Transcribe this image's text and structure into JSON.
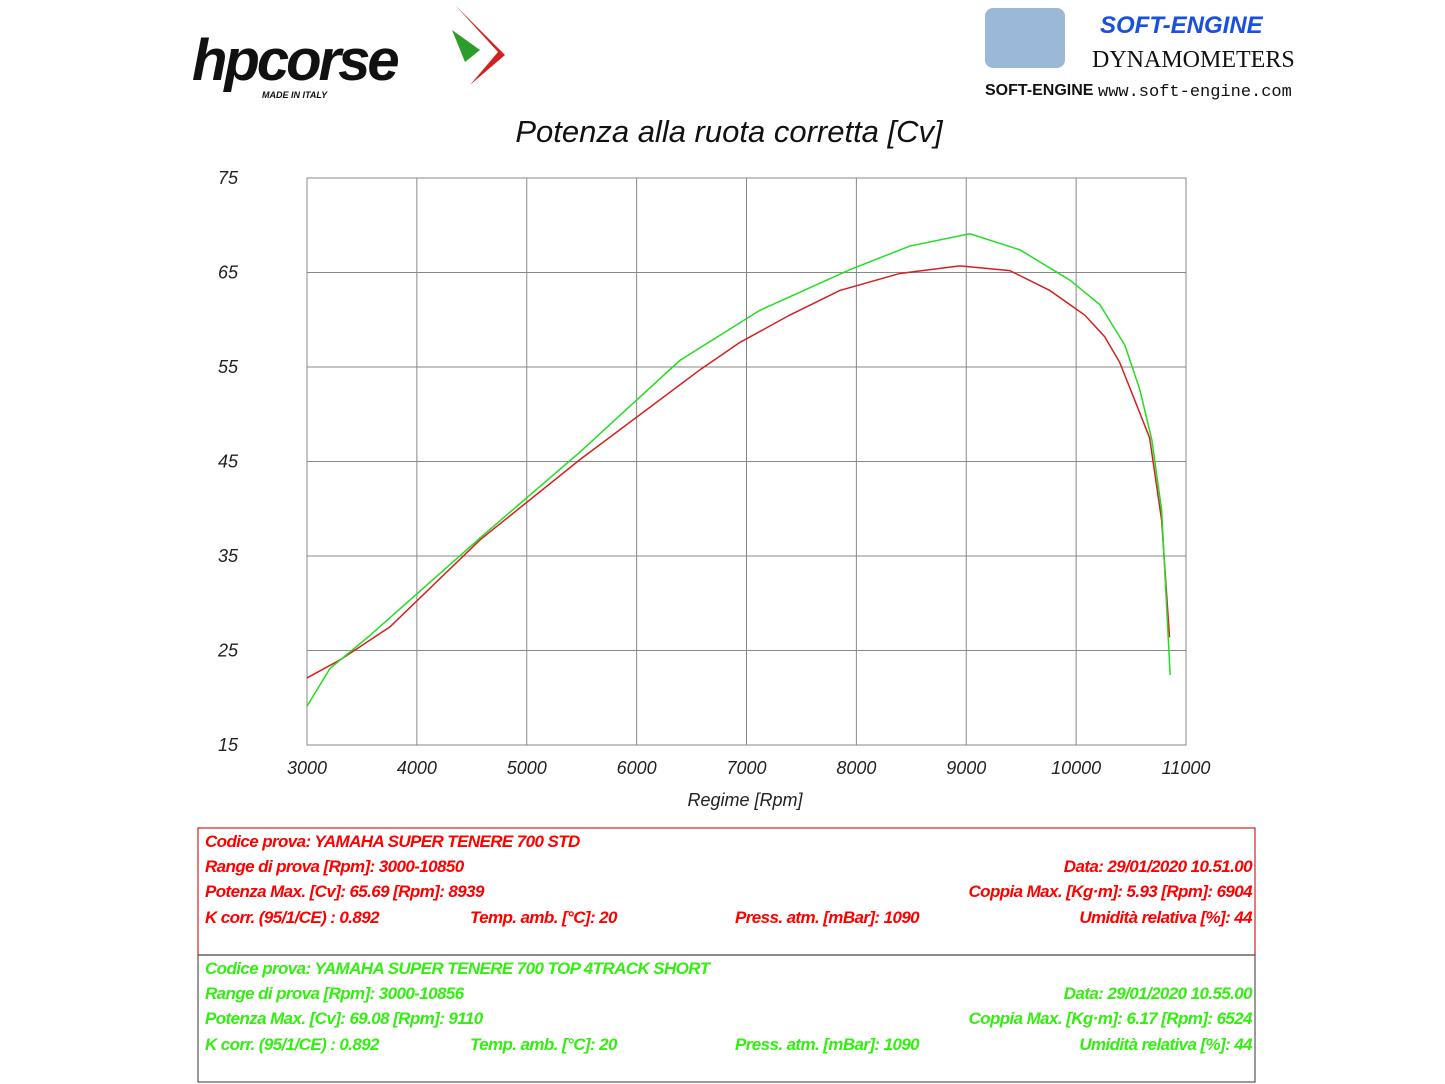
{
  "logos": {
    "brand": "hpcorse",
    "brand_tagline": "MADE IN ITALY",
    "dyno_name": "SOFT-ENGINE",
    "dyno_subtitle": "DYNAMOMETERS",
    "dyno_mark": "SOFT-ENGINE",
    "dyno_url": "www.soft-engine.com"
  },
  "chart_data": {
    "type": "line",
    "title": "Potenza alla ruota corretta [Cv]",
    "x_label": "Regime [Rpm]",
    "xlim": [
      3000,
      11000
    ],
    "xticks": [
      3000,
      4000,
      5000,
      6000,
      7000,
      8000,
      9000,
      10000,
      11000
    ],
    "ylim": [
      15,
      75
    ],
    "yticks": [
      15,
      25,
      35,
      45,
      55,
      65,
      75
    ],
    "grid": true,
    "series": [
      {
        "color": "#d42020",
        "x": [
          3000,
          3300,
          3755,
          4574,
          5484,
          6576,
          6940,
          7395,
          7850,
          8396,
          8941,
          9396,
          9760,
          10078,
          10260,
          10396,
          10533,
          10669,
          10778,
          10850
        ],
        "values": [
          22.1,
          24.0,
          27.5,
          36.7,
          45.2,
          54.7,
          57.6,
          60.5,
          63.1,
          64.9,
          65.7,
          65.2,
          63.1,
          60.5,
          58.2,
          55.5,
          51.5,
          47.5,
          38.8,
          26.4
        ]
      },
      {
        "color": "#22dd22",
        "x": [
          3000,
          3209,
          3573,
          4574,
          5484,
          6394,
          7122,
          7941,
          8487,
          9033,
          9488,
          9943,
          10216,
          10444,
          10580,
          10689,
          10778,
          10856
        ],
        "values": [
          19.1,
          23.1,
          26.6,
          36.9,
          46.0,
          55.7,
          61.0,
          65.3,
          67.8,
          69.1,
          67.4,
          64.2,
          61.6,
          57.3,
          52.6,
          47.3,
          39.9,
          22.4
        ]
      }
    ]
  },
  "info_boxes": [
    {
      "color": "#ff0000",
      "rows": [
        [
          "Codice prova: YAMAHA SUPER TENERE 700 STD"
        ],
        [
          "Range di prova [Rpm]: 3000-10850",
          "Data: 29/01/2020   10.51.00"
        ],
        [
          "Potenza Max. [Cv]: 65.69   [Rpm]: 8939",
          "Coppia Max. [Kg·m]: 5.93   [Rpm]: 6904"
        ],
        [
          "K corr. (95/1/CE) : 0.892",
          "Temp. amb. [°C]: 20",
          "Press. atm. [mBar]: 1090",
          "Umidità relativa [%]: 44"
        ]
      ]
    },
    {
      "color": "#33ee11",
      "rows": [
        [
          "Codice prova: YAMAHA SUPER TENERE 700 TOP 4TRACK SHORT"
        ],
        [
          "Range di prova [Rpm]: 3000-10856",
          "Data: 29/01/2020   10.55.00"
        ],
        [
          "Potenza Max. [Cv]: 69.08   [Rpm]: 9110",
          "Coppia Max. [Kg·m]: 6.17   [Rpm]: 6524"
        ],
        [
          "K corr. (95/1/CE) : 0.892",
          "Temp. amb. [°C]: 20",
          "Press. atm. [mBar]: 1090",
          "Umidità relativa [%]: 44"
        ]
      ]
    }
  ]
}
